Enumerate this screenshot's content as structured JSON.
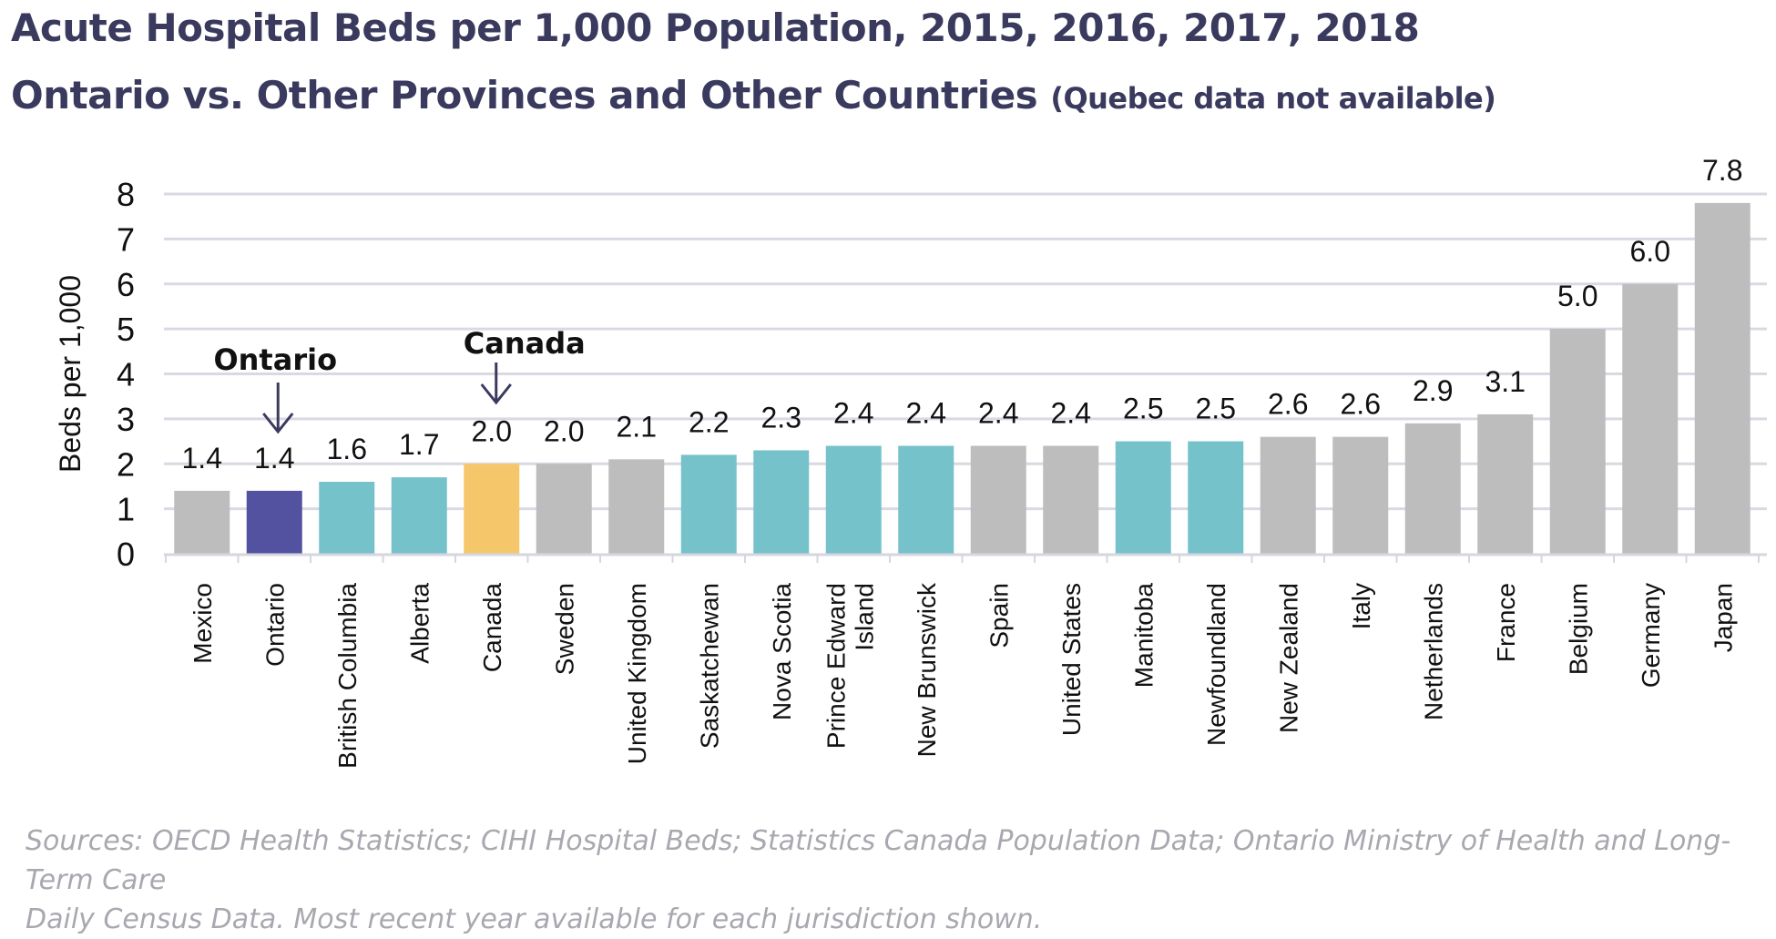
{
  "title": "Acute Hospital Beds per 1,000 Population, 2015, 2016, 2017, 2018",
  "subtitle": "Ontario vs. Other Provinces and Other Countries",
  "subtitle_note": "(Quebec data not available)",
  "source_line1": "Sources: OECD Health Statistics; CIHI Hospital Beds; Statistics Canada Population Data; Ontario Ministry of Health and Long-Term Care",
  "source_line2": "Daily Census Data. Most recent year available for each jurisdiction shown.",
  "colors": {
    "title": "#3a3a5e",
    "ontario": "#5352a0",
    "canada": "#f5c76a",
    "province": "#76c2cb",
    "country": "#bdbdbd",
    "grid": "#d9d9e3",
    "axis": "#d6d6e0",
    "arrow": "#3a3a5e"
  },
  "chart_data": {
    "type": "bar",
    "ylabel": "Beds per 1,000",
    "xlabel": "",
    "ylim": [
      0,
      8
    ],
    "yticks": [
      0,
      1,
      2,
      3,
      4,
      5,
      6,
      7,
      8
    ],
    "grid": true,
    "categories": [
      "Mexico",
      "Ontario",
      "British Columbia",
      "Alberta",
      "Canada",
      "Sweden",
      "United Kingdom",
      "Saskatchewan",
      "Nova Scotia",
      "Prince Edward Island",
      "New Brunswick",
      "Spain",
      "United States",
      "Manitoba",
      "Newfoundland",
      "New Zealand",
      "Italy",
      "Netherlands",
      "France",
      "Belgium",
      "Germany",
      "Japan"
    ],
    "values": [
      1.4,
      1.4,
      1.6,
      1.7,
      2.0,
      2.0,
      2.1,
      2.2,
      2.3,
      2.4,
      2.4,
      2.4,
      2.4,
      2.5,
      2.5,
      2.6,
      2.6,
      2.9,
      3.1,
      5.0,
      6.0,
      7.8
    ],
    "value_labels": [
      "1.4",
      "1.4",
      "1.6",
      "1.7",
      "2.0",
      "2.0",
      "2.1",
      "2.2",
      "2.3",
      "2.4",
      "2.4",
      "2.4",
      "2.4",
      "2.5",
      "2.5",
      "2.6",
      "2.6",
      "2.9",
      "3.1",
      "5.0",
      "6.0",
      "7.8"
    ],
    "bar_groups": [
      "country",
      "ontario",
      "province",
      "province",
      "canada",
      "country",
      "country",
      "province",
      "province",
      "province",
      "province",
      "country",
      "country",
      "province",
      "province",
      "country",
      "country",
      "country",
      "country",
      "country",
      "country",
      "country"
    ],
    "annotations": [
      {
        "text": "Ontario",
        "category": "Ontario"
      },
      {
        "text": "Canada",
        "category": "Canada"
      }
    ]
  }
}
